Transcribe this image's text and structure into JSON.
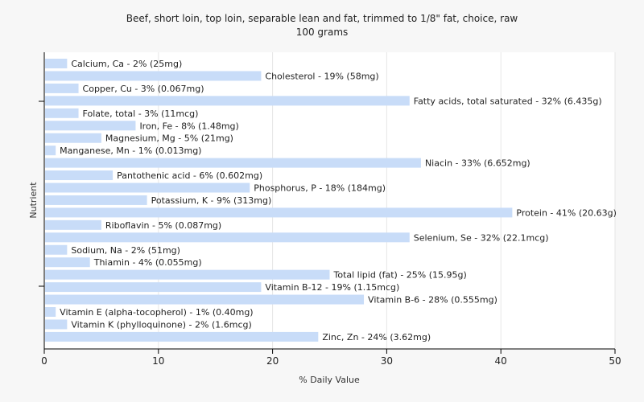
{
  "chart_data": {
    "type": "bar",
    "orientation": "horizontal",
    "title": "Beef, short loin, top loin, separable lean and fat, trimmed to 1/8\" fat, choice, raw",
    "subtitle": "100 grams",
    "xlabel": "% Daily Value",
    "ylabel": "Nutrient",
    "xlim": [
      0,
      50
    ],
    "xticks": [
      0,
      10,
      20,
      30,
      40,
      50
    ],
    "grid": true,
    "bar_color": "#c8dcf8",
    "categories": [
      "Calcium, Ca",
      "Cholesterol",
      "Copper, Cu",
      "Fatty acids, total saturated",
      "Folate, total",
      "Iron, Fe",
      "Magnesium, Mg",
      "Manganese, Mn",
      "Niacin",
      "Pantothenic acid",
      "Phosphorus, P",
      "Potassium, K",
      "Protein",
      "Riboflavin",
      "Selenium, Se",
      "Sodium, Na",
      "Thiamin",
      "Total lipid (fat)",
      "Vitamin B-12",
      "Vitamin B-6",
      "Vitamin E (alpha-tocopherol)",
      "Vitamin K (phylloquinone)",
      "Zinc, Zn"
    ],
    "values": [
      2,
      19,
      3,
      32,
      3,
      8,
      5,
      1,
      33,
      6,
      18,
      9,
      41,
      5,
      32,
      2,
      4,
      25,
      19,
      28,
      1,
      2,
      24
    ],
    "labels": [
      "Calcium, Ca - 2% (25mg)",
      "Cholesterol - 19% (58mg)",
      "Copper, Cu - 3% (0.067mg)",
      "Fatty acids, total saturated - 32% (6.435g)",
      "Folate, total - 3% (11mcg)",
      "Iron, Fe - 8% (1.48mg)",
      "Magnesium, Mg - 5% (21mg)",
      "Manganese, Mn - 1% (0.013mg)",
      "Niacin - 33% (6.652mg)",
      "Pantothenic acid - 6% (0.602mg)",
      "Phosphorus, P - 18% (184mg)",
      "Potassium, K - 9% (313mg)",
      "Protein - 41% (20.63g)",
      "Riboflavin - 5% (0.087mg)",
      "Selenium, Se - 32% (22.1mcg)",
      "Sodium, Na - 2% (51mg)",
      "Thiamin - 4% (0.055mg)",
      "Total lipid (fat) - 25% (15.95g)",
      "Vitamin B-12 - 19% (1.15mcg)",
      "Vitamin B-6 - 28% (0.555mg)",
      "Vitamin E (alpha-tocopherol) - 1% (0.40mg)",
      "Vitamin K (phylloquinone) - 2% (1.6mcg)",
      "Zinc, Zn - 24% (3.62mg)"
    ]
  }
}
